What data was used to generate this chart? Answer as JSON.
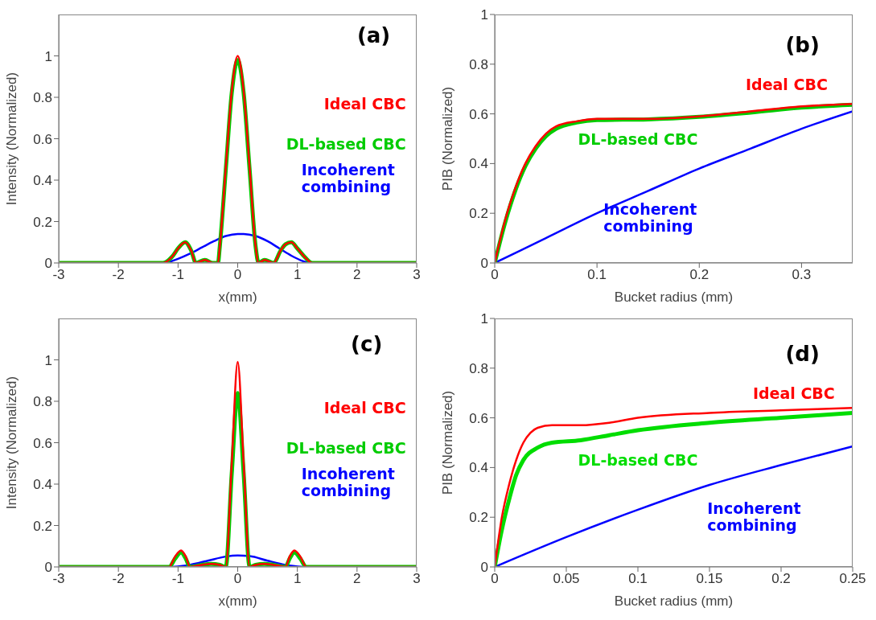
{
  "chart_data": [
    {
      "type": "line",
      "title": "(a)",
      "xlabel": "x(mm)",
      "ylabel": "Intensity (Normalized)",
      "xlim": [
        -3,
        3
      ],
      "xticks": [
        -3,
        -2,
        -1,
        0,
        1,
        2,
        3
      ],
      "ylim": [
        0,
        1.2
      ],
      "yticks": [
        0,
        0.2,
        0.4,
        0.6,
        0.8,
        1
      ],
      "grid": false,
      "legend": false,
      "series": [
        {
          "name": "Incoherent combining",
          "color": "#0000ff",
          "x": [
            -1.2,
            -1,
            -0.8,
            -0.6,
            -0.4,
            -0.2,
            0,
            0.1,
            0.3,
            0.5,
            0.7,
            0.9,
            1.1,
            1.2
          ],
          "values": [
            0,
            0.02,
            0.045,
            0.075,
            0.105,
            0.13,
            0.14,
            0.14,
            0.13,
            0.105,
            0.07,
            0.035,
            0.008,
            0
          ]
        },
        {
          "name": "DL-based CBC",
          "color": "#00cc00",
          "x": [
            -3,
            -1.25,
            -1.1,
            -1,
            -0.88,
            -0.78,
            -0.7,
            -0.55,
            -0.42,
            -0.33,
            -0.3,
            -0.2,
            -0.1,
            0,
            0.1,
            0.2,
            0.3,
            0.35,
            0.45,
            0.6,
            0.72,
            0.8,
            0.9,
            1,
            1.12,
            1.25,
            3
          ],
          "values": [
            0,
            0,
            0.03,
            0.07,
            0.1,
            0.06,
            0,
            0.015,
            0,
            0,
            0.08,
            0.45,
            0.82,
            0.98,
            0.82,
            0.45,
            0.08,
            0,
            0.015,
            0,
            0.06,
            0.09,
            0.1,
            0.07,
            0.03,
            0,
            0
          ]
        },
        {
          "name": "Ideal CBC",
          "color": "#ff0000",
          "x": [
            -3,
            -1.25,
            -1.1,
            -1,
            -0.88,
            -0.78,
            -0.7,
            -0.55,
            -0.42,
            -0.33,
            -0.3,
            -0.2,
            -0.1,
            0,
            0.1,
            0.2,
            0.3,
            0.35,
            0.45,
            0.6,
            0.72,
            0.8,
            0.9,
            1,
            1.12,
            1.25,
            3
          ],
          "values": [
            0,
            0,
            0.03,
            0.07,
            0.1,
            0.06,
            0,
            0.015,
            0,
            0,
            0.08,
            0.46,
            0.83,
            1,
            0.83,
            0.46,
            0.08,
            0,
            0.015,
            0,
            0.06,
            0.09,
            0.1,
            0.07,
            0.03,
            0,
            0
          ]
        }
      ]
    },
    {
      "type": "line",
      "title": "(b)",
      "xlabel": "Bucket radius (mm)",
      "ylabel": "PIB (Normalized)",
      "xlim": [
        0,
        0.35
      ],
      "xticks": [
        0,
        0.1,
        0.2,
        0.3
      ],
      "ylim": [
        0,
        1
      ],
      "yticks": [
        0,
        0.2,
        0.4,
        0.6,
        0.8,
        1
      ],
      "grid": false,
      "legend": false,
      "series": [
        {
          "name": "Incoherent combining",
          "color": "#0000ff",
          "x": [
            0,
            0.05,
            0.1,
            0.15,
            0.2,
            0.25,
            0.3,
            0.35
          ],
          "values": [
            0,
            0.1,
            0.2,
            0.29,
            0.38,
            0.46,
            0.54,
            0.61
          ]
        },
        {
          "name": "DL-based CBC",
          "color": "#00cc00",
          "x": [
            0,
            0.01,
            0.02,
            0.03,
            0.04,
            0.05,
            0.06,
            0.08,
            0.1,
            0.15,
            0.2,
            0.25,
            0.3,
            0.35
          ],
          "values": [
            0,
            0.16,
            0.29,
            0.39,
            0.46,
            0.51,
            0.54,
            0.565,
            0.575,
            0.578,
            0.588,
            0.605,
            0.625,
            0.637
          ]
        },
        {
          "name": "Ideal CBC",
          "color": "#ff0000",
          "x": [
            0,
            0.01,
            0.02,
            0.03,
            0.04,
            0.05,
            0.06,
            0.08,
            0.1,
            0.15,
            0.2,
            0.25,
            0.3,
            0.35
          ],
          "values": [
            0,
            0.17,
            0.3,
            0.4,
            0.47,
            0.52,
            0.55,
            0.57,
            0.58,
            0.58,
            0.59,
            0.61,
            0.63,
            0.64
          ]
        }
      ]
    },
    {
      "type": "line",
      "title": "(c)",
      "xlabel": "x(mm)",
      "ylabel": "Intensity (Normalized)",
      "xlim": [
        -3,
        3
      ],
      "xticks": [
        -3,
        -2,
        -1,
        0,
        1,
        2,
        3
      ],
      "ylim": [
        0,
        1.2
      ],
      "yticks": [
        0,
        0.2,
        0.4,
        0.6,
        0.8,
        1
      ],
      "grid": false,
      "legend": false,
      "series": [
        {
          "name": "Incoherent combining",
          "color": "#0000ff",
          "x": [
            -1.1,
            -0.8,
            -0.5,
            -0.2,
            0,
            0.2,
            0.5,
            0.8,
            1.1
          ],
          "values": [
            0,
            0.01,
            0.03,
            0.05,
            0.055,
            0.052,
            0.03,
            0.01,
            0
          ]
        },
        {
          "name": "DL-based CBC",
          "color": "#00cc00",
          "x": [
            -3,
            -1.15,
            -1.05,
            -0.95,
            -0.87,
            -0.8,
            -0.6,
            -0.45,
            -0.3,
            -0.2,
            -0.1,
            0,
            0.1,
            0.2,
            0.3,
            0.45,
            0.6,
            0.8,
            0.87,
            0.95,
            1.05,
            1.15,
            3
          ],
          "values": [
            0,
            0,
            0.04,
            0.07,
            0.04,
            0,
            0.01,
            0.015,
            0.01,
            0,
            0.45,
            0.84,
            0.45,
            0,
            0.01,
            0.015,
            0.01,
            0,
            0.04,
            0.07,
            0.04,
            0,
            0
          ]
        },
        {
          "name": "Ideal CBC",
          "color": "#ff0000",
          "x": [
            -3,
            -1.15,
            -1.05,
            -0.95,
            -0.87,
            -0.8,
            -0.6,
            -0.45,
            -0.3,
            -0.2,
            -0.1,
            0,
            0.1,
            0.2,
            0.3,
            0.45,
            0.6,
            0.8,
            0.87,
            0.95,
            1.05,
            1.15,
            3
          ],
          "values": [
            0,
            0,
            0.05,
            0.08,
            0.05,
            0,
            0.01,
            0.015,
            0.01,
            0,
            0.5,
            0.99,
            0.5,
            0,
            0.01,
            0.015,
            0.01,
            0,
            0.05,
            0.08,
            0.05,
            0,
            0
          ]
        }
      ]
    },
    {
      "type": "line",
      "title": "(d)",
      "xlabel": "Bucket radius (mm)",
      "ylabel": "PIB (Normalized)",
      "xlim": [
        0,
        0.25
      ],
      "xticks": [
        0,
        0.05,
        0.1,
        0.15,
        0.2,
        0.25
      ],
      "ylim": [
        0,
        1
      ],
      "yticks": [
        0,
        0.2,
        0.4,
        0.6,
        0.8,
        1
      ],
      "grid": false,
      "legend": false,
      "series": [
        {
          "name": "Incoherent combining",
          "color": "#0000ff",
          "x": [
            0,
            0.05,
            0.1,
            0.15,
            0.2,
            0.25
          ],
          "values": [
            0,
            0.12,
            0.23,
            0.33,
            0.41,
            0.485
          ]
        },
        {
          "name": "DL-based CBC",
          "color": "#00dd00",
          "x": [
            0,
            0.005,
            0.01,
            0.015,
            0.02,
            0.03,
            0.04,
            0.06,
            0.08,
            0.1,
            0.15,
            0.2,
            0.25
          ],
          "values": [
            0,
            0.15,
            0.27,
            0.37,
            0.43,
            0.48,
            0.5,
            0.51,
            0.53,
            0.55,
            0.58,
            0.6,
            0.62
          ]
        },
        {
          "name": "Ideal CBC",
          "color": "#ff0000",
          "x": [
            0,
            0.005,
            0.01,
            0.015,
            0.02,
            0.025,
            0.03,
            0.04,
            0.06,
            0.08,
            0.1,
            0.15,
            0.2,
            0.25
          ],
          "values": [
            0,
            0.2,
            0.33,
            0.43,
            0.5,
            0.54,
            0.56,
            0.57,
            0.57,
            0.58,
            0.6,
            0.62,
            0.63,
            0.64
          ]
        }
      ]
    }
  ]
}
